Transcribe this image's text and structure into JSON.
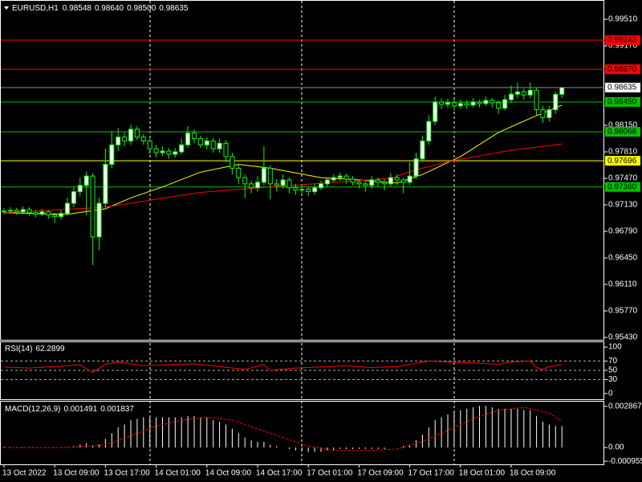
{
  "chart_data": [
    {
      "type": "candlestick",
      "title": "EURUSD,H1",
      "ohlc_labels": [
        "0.98548",
        "0.98640",
        "0.98500",
        "0.98635"
      ],
      "up_color": "#ffffff",
      "down_color": "#000000",
      "wick_color": "#00ff00",
      "last_price_color": "#8c8c8c",
      "ylim": [
        0.95399,
        0.99748
      ],
      "yticks": [
        {
          "value": 0.9951,
          "label": "0.99510"
        },
        {
          "value": 0.9917,
          "label": "0.99170"
        },
        {
          "value": 0.9815,
          "label": "0.98150"
        },
        {
          "value": 0.9781,
          "label": "0.97810"
        },
        {
          "value": 0.9747,
          "label": "0.97470"
        },
        {
          "value": 0.9713,
          "label": "0.97130"
        },
        {
          "value": 0.9679,
          "label": "0.96790"
        },
        {
          "value": 0.9645,
          "label": "0.96450"
        },
        {
          "value": 0.9611,
          "label": "0.96110"
        },
        {
          "value": 0.9577,
          "label": "0.95770"
        },
        {
          "value": 0.9543,
          "label": "0.95430"
        }
      ],
      "levels": [
        {
          "value": 0.99243,
          "label": "0.99243",
          "color": "#ff0000"
        },
        {
          "value": 0.9887,
          "label": "0.98870",
          "color": "#ff0000"
        },
        {
          "value": 0.9845,
          "label": "0.98450",
          "color": "#00c000"
        },
        {
          "value": 0.98068,
          "label": "0.98068",
          "color": "#00c000"
        },
        {
          "value": 0.97696,
          "label": "0.97696",
          "color": "#ffff00"
        },
        {
          "value": 0.9736,
          "label": "0.97360",
          "color": "#00c000"
        }
      ],
      "categories": [
        "13 Oct 2022",
        null,
        null,
        null,
        null,
        null,
        null,
        null,
        "13 Oct 09:00",
        null,
        null,
        null,
        null,
        null,
        null,
        null,
        "13 Oct 17:00",
        null,
        null,
        null,
        null,
        null,
        null,
        null,
        "14 Oct 01:00",
        null,
        null,
        null,
        null,
        null,
        null,
        null,
        "14 Oct 09:00",
        null,
        null,
        null,
        null,
        null,
        null,
        null,
        "14 Oct 17:00",
        null,
        null,
        null,
        null,
        null,
        null,
        null,
        "17 Oct 01:00",
        null,
        null,
        null,
        null,
        null,
        null,
        null,
        "17 Oct 09:00",
        null,
        null,
        null,
        null,
        null,
        null,
        null,
        "17 Oct 17:00",
        null,
        null,
        null,
        null,
        null,
        null,
        null,
        "18 Oct 01:00",
        null,
        null,
        null,
        null,
        null,
        null,
        null,
        "18 Oct 09:00",
        null,
        null,
        null,
        null,
        null,
        null,
        null,
        null
      ],
      "candles": [
        [
          0.9704,
          0.9709,
          0.9701,
          0.9705
        ],
        [
          0.9705,
          0.971,
          0.9702,
          0.9706
        ],
        [
          0.9706,
          0.9709,
          0.97,
          0.9704
        ],
        [
          0.9704,
          0.9711,
          0.9701,
          0.9707
        ],
        [
          0.9707,
          0.971,
          0.9699,
          0.9703
        ],
        [
          0.9703,
          0.9706,
          0.9697,
          0.9701
        ],
        [
          0.9701,
          0.9708,
          0.9699,
          0.9704
        ],
        [
          0.9704,
          0.9706,
          0.9695,
          0.97
        ],
        [
          0.97,
          0.9703,
          0.969,
          0.9698
        ],
        [
          0.9698,
          0.9706,
          0.9694,
          0.9702
        ],
        [
          0.9702,
          0.9722,
          0.9699,
          0.9715
        ],
        [
          0.9715,
          0.9736,
          0.971,
          0.973
        ],
        [
          0.973,
          0.9748,
          0.9724,
          0.9738
        ],
        [
          0.9738,
          0.9756,
          0.97,
          0.975
        ],
        [
          0.975,
          0.9754,
          0.9636,
          0.9672
        ],
        [
          0.9672,
          0.9722,
          0.9655,
          0.9715
        ],
        [
          0.9715,
          0.9785,
          0.971,
          0.9765
        ],
        [
          0.9765,
          0.9808,
          0.976,
          0.979
        ],
        [
          0.979,
          0.9812,
          0.9782,
          0.98
        ],
        [
          0.98,
          0.9806,
          0.9788,
          0.9795
        ],
        [
          0.9795,
          0.9816,
          0.979,
          0.981
        ],
        [
          0.981,
          0.9814,
          0.9796,
          0.98
        ],
        [
          0.98,
          0.9804,
          0.979,
          0.9795
        ],
        [
          0.9795,
          0.9798,
          0.9778,
          0.9785
        ],
        [
          0.9785,
          0.979,
          0.9774,
          0.978
        ],
        [
          0.978,
          0.9788,
          0.9776,
          0.9782
        ],
        [
          0.9782,
          0.9786,
          0.9772,
          0.9778
        ],
        [
          0.9778,
          0.9786,
          0.9774,
          0.9781
        ],
        [
          0.9781,
          0.9798,
          0.9778,
          0.979
        ],
        [
          0.979,
          0.9814,
          0.9786,
          0.9805
        ],
        [
          0.9805,
          0.981,
          0.9792,
          0.9798
        ],
        [
          0.9798,
          0.9802,
          0.9786,
          0.979
        ],
        [
          0.979,
          0.98,
          0.9784,
          0.9795
        ],
        [
          0.9795,
          0.9799,
          0.978,
          0.9785
        ],
        [
          0.9785,
          0.9798,
          0.978,
          0.9792
        ],
        [
          0.9792,
          0.9796,
          0.9768,
          0.9775
        ],
        [
          0.9775,
          0.978,
          0.9752,
          0.976
        ],
        [
          0.976,
          0.9764,
          0.974,
          0.9748
        ],
        [
          0.9748,
          0.9752,
          0.9722,
          0.974
        ],
        [
          0.974,
          0.9744,
          0.9728,
          0.9735
        ],
        [
          0.9735,
          0.975,
          0.973,
          0.9742
        ],
        [
          0.9742,
          0.9788,
          0.9738,
          0.976
        ],
        [
          0.976,
          0.9764,
          0.972,
          0.974
        ],
        [
          0.974,
          0.9746,
          0.973,
          0.9738
        ],
        [
          0.9738,
          0.9752,
          0.9734,
          0.9745
        ],
        [
          0.9745,
          0.9748,
          0.9728,
          0.9735
        ],
        [
          0.9735,
          0.974,
          0.9726,
          0.9732
        ],
        [
          0.9732,
          0.9738,
          0.9728,
          0.9733
        ],
        [
          0.9733,
          0.9736,
          0.9724,
          0.973
        ],
        [
          0.973,
          0.974,
          0.9726,
          0.9735
        ],
        [
          0.9735,
          0.9744,
          0.9732,
          0.974
        ],
        [
          0.974,
          0.9748,
          0.9736,
          0.9745
        ],
        [
          0.9745,
          0.9752,
          0.9742,
          0.9748
        ],
        [
          0.9748,
          0.9754,
          0.9744,
          0.975
        ],
        [
          0.975,
          0.9753,
          0.974,
          0.9746
        ],
        [
          0.9746,
          0.975,
          0.9738,
          0.9742
        ],
        [
          0.9742,
          0.9745,
          0.9734,
          0.974
        ],
        [
          0.974,
          0.9744,
          0.973,
          0.9738
        ],
        [
          0.9738,
          0.975,
          0.9734,
          0.9745
        ],
        [
          0.9745,
          0.9748,
          0.9736,
          0.9742
        ],
        [
          0.9742,
          0.9746,
          0.9732,
          0.974
        ],
        [
          0.974,
          0.9754,
          0.9736,
          0.9748
        ],
        [
          0.9748,
          0.9752,
          0.9738,
          0.9745
        ],
        [
          0.9745,
          0.9748,
          0.9728,
          0.9742
        ],
        [
          0.9742,
          0.9768,
          0.9738,
          0.975
        ],
        [
          0.975,
          0.978,
          0.9746,
          0.9772
        ],
        [
          0.9772,
          0.9802,
          0.9768,
          0.9795
        ],
        [
          0.9795,
          0.9828,
          0.979,
          0.982
        ],
        [
          0.982,
          0.9852,
          0.9815,
          0.9845
        ],
        [
          0.9845,
          0.985,
          0.9836,
          0.9842
        ],
        [
          0.9842,
          0.9849,
          0.9838,
          0.9844
        ],
        [
          0.9844,
          0.9848,
          0.9834,
          0.984
        ],
        [
          0.984,
          0.9848,
          0.9836,
          0.9843
        ],
        [
          0.9843,
          0.9847,
          0.9836,
          0.9841
        ],
        [
          0.9841,
          0.985,
          0.9838,
          0.9845
        ],
        [
          0.9845,
          0.9848,
          0.9838,
          0.9843
        ],
        [
          0.9843,
          0.9852,
          0.984,
          0.9847
        ],
        [
          0.9847,
          0.985,
          0.9838,
          0.9844
        ],
        [
          0.9844,
          0.9847,
          0.983,
          0.9837
        ],
        [
          0.9837,
          0.9854,
          0.9834,
          0.9848
        ],
        [
          0.9848,
          0.9866,
          0.9844,
          0.9855
        ],
        [
          0.9855,
          0.987,
          0.985,
          0.9858
        ],
        [
          0.9858,
          0.9862,
          0.9848,
          0.9854
        ],
        [
          0.9854,
          0.987,
          0.985,
          0.986
        ],
        [
          0.986,
          0.9863,
          0.9828,
          0.9835
        ],
        [
          0.9835,
          0.984,
          0.9818,
          0.9825
        ],
        [
          0.9825,
          0.984,
          0.982,
          0.9835
        ],
        [
          0.9835,
          0.9858,
          0.983,
          0.98548
        ],
        [
          0.98548,
          0.9864,
          0.985,
          0.98635
        ]
      ],
      "series": [
        {
          "color": "#ffff00",
          "x": [
            0,
            10,
            16,
            20,
            25,
            31,
            37,
            42,
            50,
            56,
            62,
            66,
            72,
            78,
            83,
            88
          ],
          "values": [
            0.9703,
            0.9701,
            0.9708,
            0.9722,
            0.9736,
            0.9755,
            0.9765,
            0.976,
            0.9748,
            0.9745,
            0.9741,
            0.9752,
            0.9775,
            0.9806,
            0.9824,
            0.9841
          ]
        },
        {
          "color": "#ff0000",
          "x": [
            0,
            16,
            31,
            47,
            61,
            65,
            71,
            80,
            88
          ],
          "values": [
            0.9703,
            0.971,
            0.9729,
            0.9739,
            0.9747,
            0.9758,
            0.977,
            0.9783,
            0.9791
          ]
        }
      ]
    },
    {
      "type": "line",
      "title": "RSI(14)",
      "ylim": [
        -12.3,
        110.5
      ],
      "yticks": [
        100,
        70,
        50,
        30,
        0
      ],
      "series": [
        {
          "color": "#ff0000",
          "x": [
            0,
            4,
            8,
            12,
            14,
            16,
            18,
            22,
            26,
            30,
            34,
            38,
            41,
            42,
            46,
            50,
            54,
            58,
            62,
            65,
            67,
            70,
            74,
            78,
            80,
            83,
            84,
            85,
            86,
            88
          ],
          "values": [
            57,
            55,
            58,
            62,
            45,
            63,
            68,
            60,
            62,
            64,
            58,
            52,
            62,
            50,
            55,
            57,
            60,
            56,
            58,
            65,
            70,
            68,
            66,
            63,
            68,
            70,
            56,
            52,
            58,
            62.2899
          ]
        }
      ]
    },
    {
      "type": "macd",
      "title": "MACD(12,26,9)",
      "ylim": [
        -0.00117,
        0.003192
      ],
      "yticks": [
        0.002867,
        {
          "value": 0,
          "label": "0.00"
        },
        -0.000955
      ],
      "histogram": {
        "color": "#ffffff",
        "values": [
          5e-05,
          4e-05,
          3e-05,
          3e-05,
          2e-05,
          1e-05,
          1e-05,
          -1e-05,
          -2e-05,
          -2e-05,
          2e-05,
          0.0001,
          0.0002,
          0.0003,
          0.0001,
          0.0002,
          0.0006,
          0.001,
          0.0014,
          0.0016,
          0.0019,
          0.002,
          0.0021,
          0.0021,
          0.0021,
          0.0021,
          0.0021,
          0.0021,
          0.0021,
          0.0022,
          0.0022,
          0.0021,
          0.0021,
          0.0019,
          0.0018,
          0.0016,
          0.0013,
          0.001,
          0.0007,
          0.0005,
          0.0004,
          0.0004,
          0.0002,
          0.0001,
          0,
          -0.0001,
          -0.0002,
          -0.0002,
          -0.0003,
          -0.0003,
          -0.0003,
          -0.0002,
          -0.0002,
          -0.0001,
          -0.0001,
          -0.0001,
          -0.0001,
          -0.0001,
          -0.0001,
          -0.0001,
          -0.0001,
          0,
          0,
          0.0001,
          0.0002,
          0.0005,
          0.0009,
          0.0014,
          0.0019,
          0.0021,
          0.0023,
          0.0025,
          0.0026,
          0.0027,
          0.0028,
          0.0029,
          0.0029,
          0.0028,
          0.0027,
          0.0027,
          0.0027,
          0.0027,
          0.0026,
          0.0026,
          0.0022,
          0.0018,
          0.0016,
          0.0015,
          0.001491
        ]
      },
      "signal": {
        "color": "#ff0000",
        "x": [
          0,
          10,
          16,
          20,
          24,
          28,
          32,
          36,
          40,
          44,
          48,
          52,
          58,
          62,
          66,
          70,
          74,
          78,
          82,
          86,
          88
        ],
        "values": [
          0,
          0,
          0.0002,
          0.0008,
          0.0015,
          0.0019,
          0.0021,
          0.0019,
          0.0013,
          0.0007,
          0.0001,
          -0.0002,
          -0.0002,
          -0.0001,
          0.0004,
          0.0012,
          0.002,
          0.0026,
          0.0028,
          0.0024,
          0.001837
        ]
      }
    }
  ]
}
